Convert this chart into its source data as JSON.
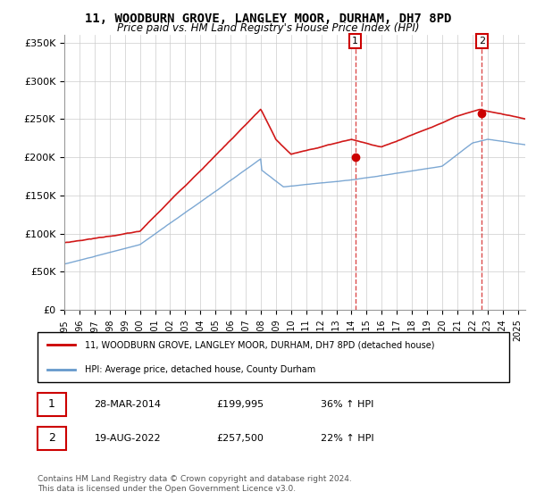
{
  "title": "11, WOODBURN GROVE, LANGLEY MOOR, DURHAM, DH7 8PD",
  "subtitle": "Price paid vs. HM Land Registry's House Price Index (HPI)",
  "ylabel_ticks": [
    "£0",
    "£50K",
    "£100K",
    "£150K",
    "£200K",
    "£250K",
    "£300K",
    "£350K"
  ],
  "ylim": [
    0,
    360000
  ],
  "xlim_start": 1995.0,
  "xlim_end": 2025.5,
  "sale1_date": 2014.24,
  "sale1_price": 199995,
  "sale1_label": "1",
  "sale2_date": 2022.63,
  "sale2_price": 257500,
  "sale2_label": "2",
  "legend_line1": "11, WOODBURN GROVE, LANGLEY MOOR, DURHAM, DH7 8PD (detached house)",
  "legend_line2": "HPI: Average price, detached house, County Durham",
  "table_row1": [
    "1",
    "28-MAR-2014",
    "£199,995",
    "36% ↑ HPI"
  ],
  "table_row2": [
    "2",
    "19-AUG-2022",
    "£257,500",
    "22% ↑ HPI"
  ],
  "footer": "Contains HM Land Registry data © Crown copyright and database right 2024.\nThis data is licensed under the Open Government Licence v3.0.",
  "red_color": "#cc0000",
  "blue_color": "#6699cc",
  "dashed_color": "#cc0000",
  "background_color": "#ffffff",
  "grid_color": "#cccccc"
}
